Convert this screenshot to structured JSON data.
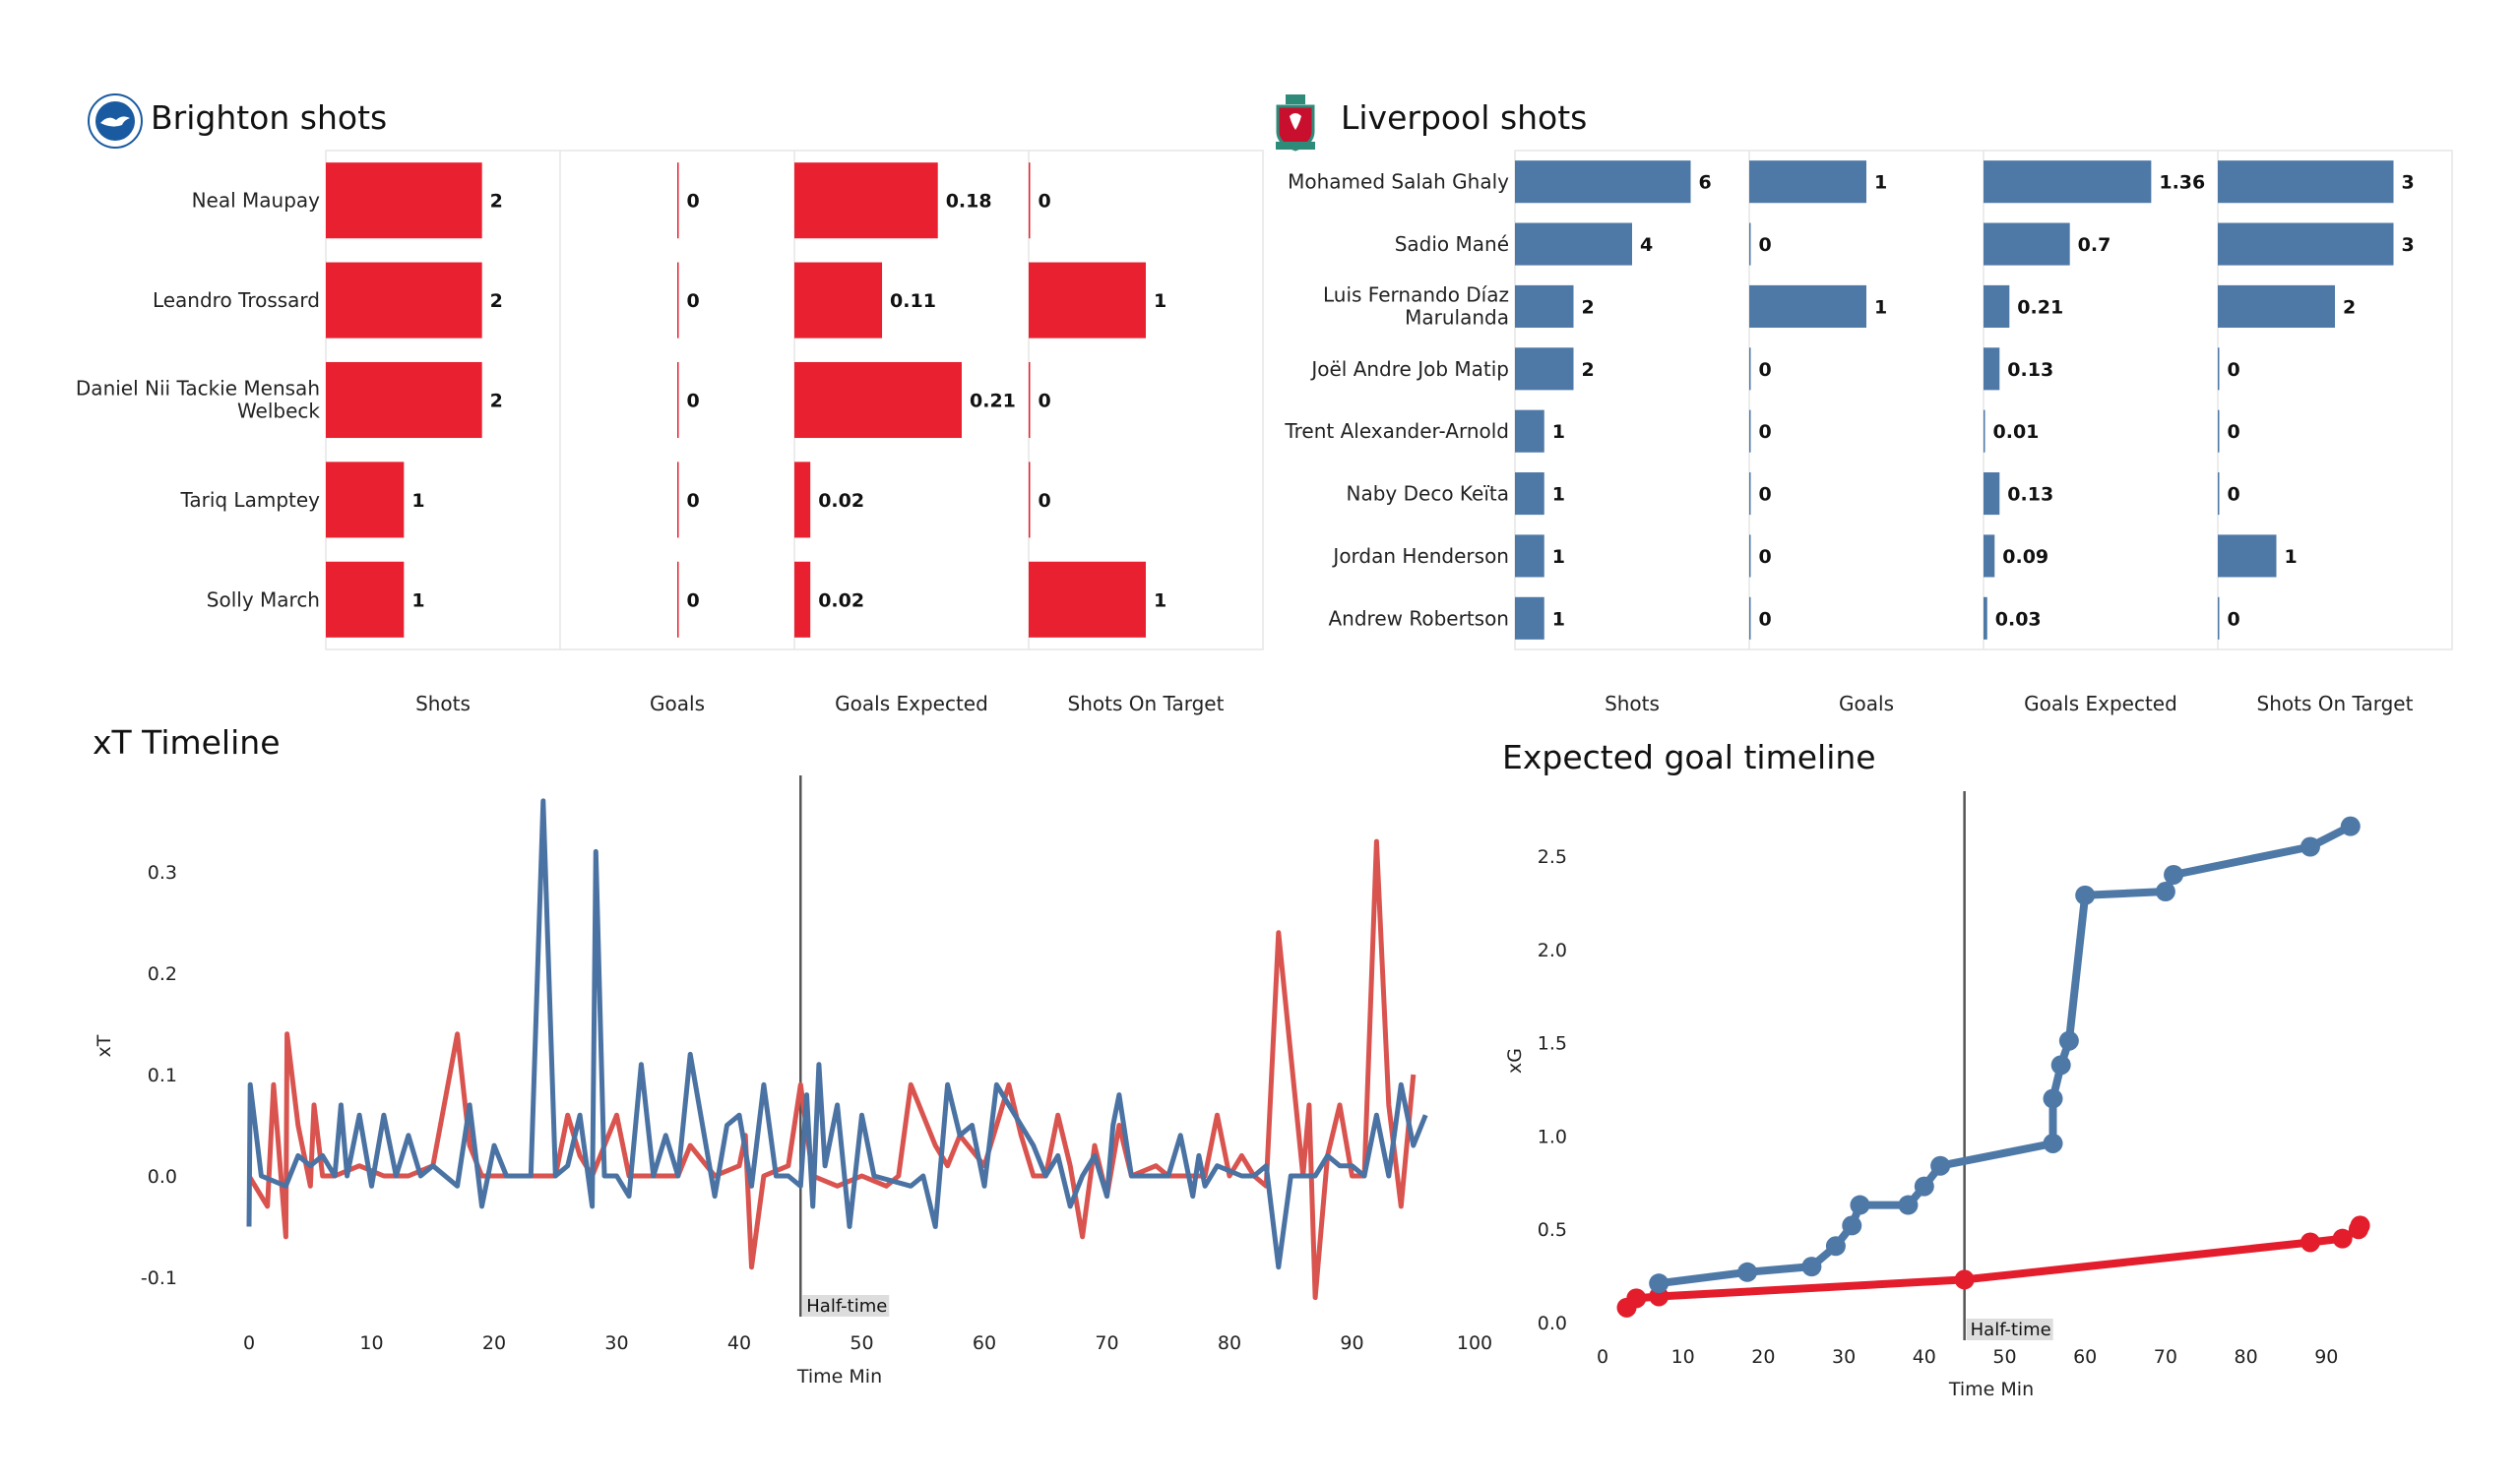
{
  "brighton": {
    "title": "Brighton shots",
    "logo": "brighton-crest",
    "color": "#e8202f",
    "columns": [
      "Shots",
      "Goals",
      "Goals Expected",
      "Shots On Target"
    ],
    "players": [
      {
        "name": "Neal Maupay",
        "values": [
          "2",
          "0",
          "0.18",
          "0"
        ]
      },
      {
        "name": "Leandro Trossard",
        "values": [
          "2",
          "0",
          "0.11",
          "1"
        ]
      },
      {
        "name": "Daniel Nii Tackie Mensah Welbeck",
        "values": [
          "2",
          "0",
          "0.21",
          "0"
        ]
      },
      {
        "name": "Tariq Lamptey",
        "values": [
          "1",
          "0",
          "0.02",
          "0"
        ]
      },
      {
        "name": "Solly March",
        "values": [
          "1",
          "0",
          "0.02",
          "1"
        ]
      }
    ]
  },
  "liverpool": {
    "title": "Liverpool shots",
    "logo": "liverpool-crest",
    "color": "#4e79a7",
    "columns": [
      "Shots",
      "Goals",
      "Goals Expected",
      "Shots On Target"
    ],
    "players": [
      {
        "name": "Mohamed  Salah Ghaly",
        "values": [
          "6",
          "1",
          "1.36",
          "3"
        ]
      },
      {
        "name": "Sadio Mané",
        "values": [
          "4",
          "0",
          "0.7",
          "3"
        ]
      },
      {
        "name": "Luis Fernando Díaz Marulanda",
        "values": [
          "2",
          "1",
          "0.21",
          "2"
        ]
      },
      {
        "name": "Joël Andre Job Matip",
        "values": [
          "2",
          "0",
          "0.13",
          "0"
        ]
      },
      {
        "name": "Trent Alexander-Arnold",
        "values": [
          "1",
          "0",
          "0.01",
          "0"
        ]
      },
      {
        "name": "Naby Deco Keïta",
        "values": [
          "1",
          "0",
          "0.13",
          "0"
        ]
      },
      {
        "name": "Jordan Henderson",
        "values": [
          "1",
          "0",
          "0.09",
          "1"
        ]
      },
      {
        "name": "Andrew Robertson",
        "values": [
          "1",
          "0",
          "0.03",
          "0"
        ]
      }
    ]
  },
  "chart_data": [
    {
      "type": "line",
      "title": "xT Timeline",
      "xlabel": "Time Min",
      "ylabel": "xT",
      "xlim": [
        0,
        100
      ],
      "ylim": [
        -0.13,
        0.38
      ],
      "xticks": [
        "0",
        "10",
        "20",
        "30",
        "40",
        "50",
        "60",
        "70",
        "80",
        "90",
        "100"
      ],
      "yticks": [
        "-0.1",
        "0.0",
        "0.1",
        "0.2",
        "0.3"
      ],
      "grid": false,
      "annotation": {
        "x": 45,
        "label": "Half-time"
      },
      "series": [
        {
          "color": "#d9534f",
          "points": [
            [
              0,
              0.0
            ],
            [
              1,
              -0.02
            ],
            [
              1.5,
              -0.03
            ],
            [
              2,
              0.09
            ],
            [
              3,
              -0.06
            ],
            [
              3.1,
              0.14
            ],
            [
              4,
              0.05
            ],
            [
              5,
              -0.01
            ],
            [
              5.3,
              0.07
            ],
            [
              6,
              0.0
            ],
            [
              7,
              0.0
            ],
            [
              9,
              0.01
            ],
            [
              11,
              0.0
            ],
            [
              13,
              0.0
            ],
            [
              15,
              0.01
            ],
            [
              17,
              0.14
            ],
            [
              18,
              0.03
            ],
            [
              19,
              0.0
            ],
            [
              22,
              0.0
            ],
            [
              25,
              0.0
            ],
            [
              26,
              0.06
            ],
            [
              27,
              0.02
            ],
            [
              28,
              0.0
            ],
            [
              30,
              0.06
            ],
            [
              31,
              0.0
            ],
            [
              33,
              0.0
            ],
            [
              35,
              0.0
            ],
            [
              36,
              0.03
            ],
            [
              38,
              0.0
            ],
            [
              40,
              0.01
            ],
            [
              40.5,
              0.04
            ],
            [
              41,
              -0.09
            ],
            [
              42,
              0.0
            ],
            [
              44,
              0.01
            ],
            [
              45,
              0.09
            ],
            [
              46,
              0.0
            ],
            [
              48,
              -0.01
            ],
            [
              50,
              0.0
            ],
            [
              52,
              -0.01
            ],
            [
              53,
              0.0
            ],
            [
              54,
              0.09
            ],
            [
              56,
              0.03
            ],
            [
              57,
              0.01
            ],
            [
              58,
              0.04
            ],
            [
              60,
              0.01
            ],
            [
              62,
              0.09
            ],
            [
              63,
              0.04
            ],
            [
              64,
              0.0
            ],
            [
              65,
              0.0
            ],
            [
              66,
              0.06
            ],
            [
              67,
              0.01
            ],
            [
              68,
              -0.06
            ],
            [
              69,
              0.03
            ],
            [
              70,
              -0.02
            ],
            [
              71,
              0.05
            ],
            [
              72,
              0.0
            ],
            [
              74,
              0.01
            ],
            [
              75,
              0.0
            ],
            [
              77,
              0.0
            ],
            [
              78,
              0.0
            ],
            [
              79,
              0.06
            ],
            [
              80,
              0.0
            ],
            [
              81,
              0.02
            ],
            [
              82,
              0.0
            ],
            [
              83,
              -0.01
            ],
            [
              84,
              0.24
            ],
            [
              86,
              0.0
            ],
            [
              86.5,
              0.07
            ],
            [
              87,
              -0.12
            ],
            [
              88,
              0.02
            ],
            [
              89,
              0.07
            ],
            [
              90,
              0.0
            ],
            [
              91,
              0.0
            ],
            [
              92,
              0.33
            ],
            [
              93,
              0.07
            ],
            [
              94,
              -0.03
            ],
            [
              95,
              0.1
            ]
          ]
        },
        {
          "color": "#4a72a2",
          "points": [
            [
              0,
              -0.05
            ],
            [
              0.1,
              0.09
            ],
            [
              1,
              0.0
            ],
            [
              3,
              -0.01
            ],
            [
              4,
              0.02
            ],
            [
              5,
              0.01
            ],
            [
              6,
              0.02
            ],
            [
              7,
              0.0
            ],
            [
              7.5,
              0.07
            ],
            [
              8,
              0.0
            ],
            [
              9,
              0.06
            ],
            [
              10,
              -0.01
            ],
            [
              11,
              0.06
            ],
            [
              12,
              0.0
            ],
            [
              13,
              0.04
            ],
            [
              14,
              0.0
            ],
            [
              15,
              0.01
            ],
            [
              17,
              -0.01
            ],
            [
              18,
              0.07
            ],
            [
              19,
              -0.03
            ],
            [
              20,
              0.03
            ],
            [
              21,
              0.0
            ],
            [
              22,
              0.0
            ],
            [
              23,
              0.0
            ],
            [
              24,
              0.37
            ],
            [
              25,
              0.0
            ],
            [
              26,
              0.01
            ],
            [
              27,
              0.06
            ],
            [
              28,
              -0.03
            ],
            [
              28.3,
              0.32
            ],
            [
              29,
              0.0
            ],
            [
              30,
              0.0
            ],
            [
              31,
              -0.02
            ],
            [
              32,
              0.11
            ],
            [
              33,
              0.0
            ],
            [
              34,
              0.04
            ],
            [
              35,
              0.0
            ],
            [
              36,
              0.12
            ],
            [
              38,
              -0.02
            ],
            [
              39,
              0.05
            ],
            [
              40,
              0.06
            ],
            [
              41,
              -0.01
            ],
            [
              42,
              0.09
            ],
            [
              43,
              0.0
            ],
            [
              44,
              0.0
            ],
            [
              45,
              -0.01
            ],
            [
              45.5,
              0.08
            ],
            [
              46,
              -0.03
            ],
            [
              46.5,
              0.11
            ],
            [
              47,
              0.01
            ],
            [
              48,
              0.07
            ],
            [
              49,
              -0.05
            ],
            [
              50,
              0.06
            ],
            [
              51,
              0.0
            ],
            [
              54,
              -0.01
            ],
            [
              55,
              0.0
            ],
            [
              56,
              -0.05
            ],
            [
              57,
              0.09
            ],
            [
              58,
              0.04
            ],
            [
              59,
              0.05
            ],
            [
              60,
              -0.01
            ],
            [
              61,
              0.09
            ],
            [
              64,
              0.03
            ],
            [
              65,
              0.0
            ],
            [
              66,
              0.02
            ],
            [
              67,
              -0.03
            ],
            [
              68,
              0.0
            ],
            [
              69,
              0.02
            ],
            [
              70,
              -0.02
            ],
            [
              70.5,
              0.05
            ],
            [
              71,
              0.08
            ],
            [
              72,
              0.0
            ],
            [
              74,
              0.0
            ],
            [
              75,
              0.0
            ],
            [
              76,
              0.04
            ],
            [
              77,
              -0.02
            ],
            [
              77.5,
              0.02
            ],
            [
              78,
              -0.01
            ],
            [
              79,
              0.01
            ],
            [
              81,
              0.0
            ],
            [
              82,
              0.0
            ],
            [
              83,
              0.01
            ],
            [
              84,
              -0.09
            ],
            [
              85,
              0.0
            ],
            [
              86,
              0.0
            ],
            [
              87,
              0.0
            ],
            [
              88,
              0.02
            ],
            [
              89,
              0.01
            ],
            [
              90,
              0.01
            ],
            [
              91,
              0.0
            ],
            [
              92,
              0.06
            ],
            [
              93,
              0.0
            ],
            [
              94,
              0.09
            ],
            [
              95,
              0.03
            ],
            [
              96,
              0.06
            ]
          ]
        }
      ]
    },
    {
      "type": "line",
      "title": "Expected goal timeline",
      "xlabel": "Time Min",
      "ylabel": "xG",
      "xlim": [
        0,
        97
      ],
      "ylim": [
        0,
        2.75
      ],
      "xticks": [
        "0",
        "10",
        "20",
        "30",
        "40",
        "50",
        "60",
        "70",
        "80",
        "90"
      ],
      "yticks": [
        "0.0",
        "0.5",
        "1.0",
        "1.5",
        "2.0",
        "2.5"
      ],
      "grid": false,
      "annotation": {
        "x": 45,
        "label": "Half-time"
      },
      "series": [
        {
          "color": "#e31d2b",
          "points": [
            [
              3,
              0.08
            ],
            [
              4.2,
              0.13
            ],
            [
              7,
              0.14
            ],
            [
              45,
              0.23
            ],
            [
              88,
              0.43
            ],
            [
              92,
              0.45
            ],
            [
              94,
              0.5
            ],
            [
              94.2,
              0.52
            ]
          ]
        },
        {
          "color": "#4e79a7",
          "points": [
            [
              7,
              0.21
            ],
            [
              18,
              0.27
            ],
            [
              26,
              0.3
            ],
            [
              29,
              0.41
            ],
            [
              31,
              0.52
            ],
            [
              32,
              0.63
            ],
            [
              38,
              0.63
            ],
            [
              40,
              0.73
            ],
            [
              42,
              0.84
            ],
            [
              56,
              0.96
            ],
            [
              56,
              1.2
            ],
            [
              57,
              1.38
            ],
            [
              58,
              1.51
            ],
            [
              60,
              2.29
            ],
            [
              70,
              2.31
            ],
            [
              71,
              2.4
            ],
            [
              88,
              2.55
            ],
            [
              93,
              2.66
            ]
          ]
        }
      ]
    }
  ]
}
